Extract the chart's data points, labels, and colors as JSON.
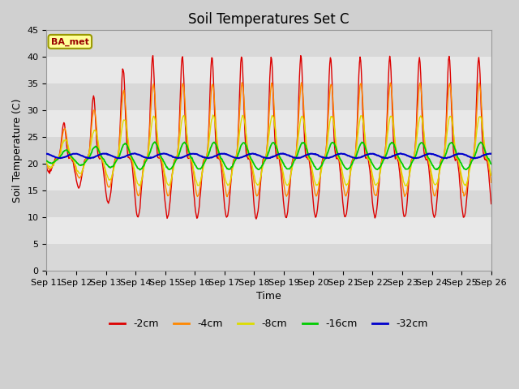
{
  "title": "Soil Temperatures Set C",
  "xlabel": "Time",
  "ylabel": "Soil Temperature (C)",
  "ylim": [
    0,
    45
  ],
  "n_days": 15,
  "start_day": 11,
  "annotation_text": "BA_met",
  "series_colors": {
    "-2cm": "#dd0000",
    "-4cm": "#ff8800",
    "-8cm": "#dddd00",
    "-16cm": "#00cc00",
    "-32cm": "#0000cc"
  },
  "series_linewidth": 1.0,
  "fig_bg_color": "#d0d0d0",
  "plot_bg_color": "#e8e8e8",
  "tick_fontsize": 8,
  "label_fontsize": 9,
  "title_fontsize": 12,
  "hours_per_day": 48
}
